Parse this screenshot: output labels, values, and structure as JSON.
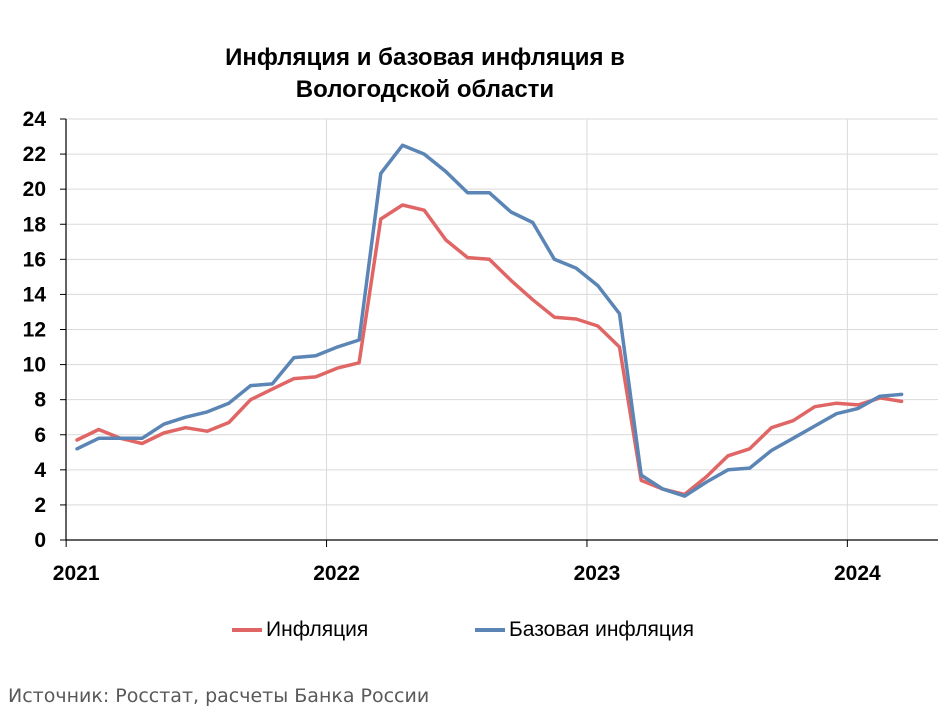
{
  "chart_data": {
    "type": "line",
    "title": "Инфляция и базовая инфляция в Вологодской области",
    "title_lines": [
      "Инфляция и базовая инфляция в",
      "Вологодской области"
    ],
    "xlabel": "",
    "ylabel": "",
    "ylim": [
      0,
      24
    ],
    "yticks": [
      0,
      2,
      4,
      6,
      8,
      10,
      12,
      14,
      16,
      18,
      20,
      22,
      24
    ],
    "x": [
      "2021-01",
      "2021-02",
      "2021-03",
      "2021-04",
      "2021-05",
      "2021-06",
      "2021-07",
      "2021-08",
      "2021-09",
      "2021-10",
      "2021-11",
      "2021-12",
      "2022-01",
      "2022-02",
      "2022-03",
      "2022-04",
      "2022-05",
      "2022-06",
      "2022-07",
      "2022-08",
      "2022-09",
      "2022-10",
      "2022-11",
      "2022-12",
      "2023-01",
      "2023-02",
      "2023-03",
      "2023-04",
      "2023-05",
      "2023-06",
      "2023-07",
      "2023-08",
      "2023-09",
      "2023-10",
      "2023-11",
      "2023-12",
      "2024-01",
      "2024-02",
      "2024-03"
    ],
    "xtick_labels": [
      "2021",
      "2022",
      "2023",
      "2024"
    ],
    "grid": true,
    "legend_position": "bottom",
    "series": [
      {
        "name": "Инфляция",
        "color": "#e06666",
        "values": [
          5.7,
          6.3,
          5.8,
          5.5,
          6.1,
          6.4,
          6.2,
          6.7,
          8.0,
          8.6,
          9.2,
          9.3,
          9.8,
          10.1,
          18.3,
          19.1,
          18.8,
          17.1,
          16.1,
          16.0,
          14.8,
          13.7,
          12.7,
          12.6,
          12.2,
          11.0,
          3.4,
          2.9,
          2.6,
          3.6,
          4.8,
          5.2,
          6.4,
          6.8,
          7.6,
          7.8,
          7.7,
          8.1,
          7.9
        ]
      },
      {
        "name": "Базовая инфляция",
        "color": "#5b85b5",
        "values": [
          5.2,
          5.8,
          5.8,
          5.8,
          6.6,
          7.0,
          7.3,
          7.8,
          8.8,
          8.9,
          10.4,
          10.5,
          11.0,
          11.4,
          20.9,
          22.5,
          22.0,
          21.0,
          19.8,
          19.8,
          18.7,
          18.1,
          16.0,
          15.5,
          14.5,
          12.9,
          3.7,
          2.9,
          2.5,
          3.3,
          4.0,
          4.1,
          5.1,
          5.8,
          6.5,
          7.2,
          7.5,
          8.2,
          8.3
        ]
      }
    ]
  },
  "source": "Источник: Росстат, расчеты Банка России"
}
